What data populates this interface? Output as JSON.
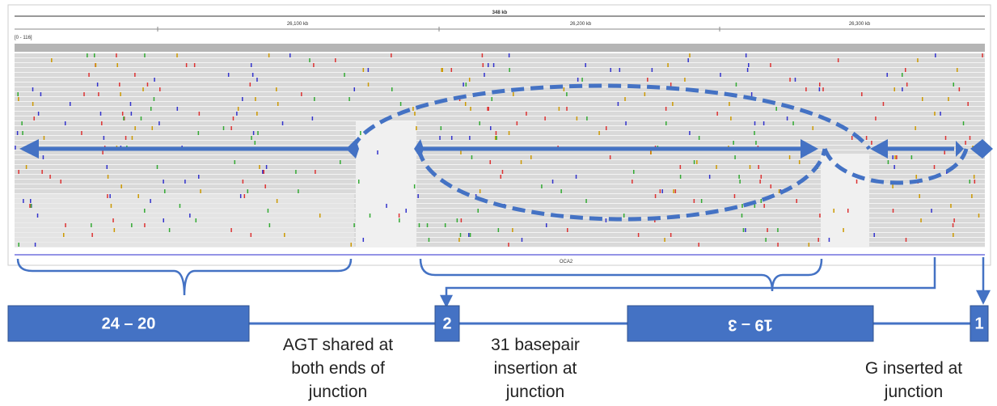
{
  "browser": {
    "ruler": {
      "span": "348 kb",
      "ticks": [
        "26,100 kb",
        "26,200 kb",
        "26,300 kb"
      ]
    },
    "coverage_range": "[0 - 116]",
    "gene": "OCA2"
  },
  "exons": [
    "24 – 20",
    "2",
    "19 – 3",
    "1"
  ],
  "annotations": [
    {
      "lines": [
        "AGT shared at",
        "both ends of",
        "junction"
      ]
    },
    {
      "lines": [
        "31 basepair",
        "insertion at",
        "junction"
      ]
    },
    {
      "lines": [
        "G inserted at",
        "junction"
      ]
    }
  ]
}
